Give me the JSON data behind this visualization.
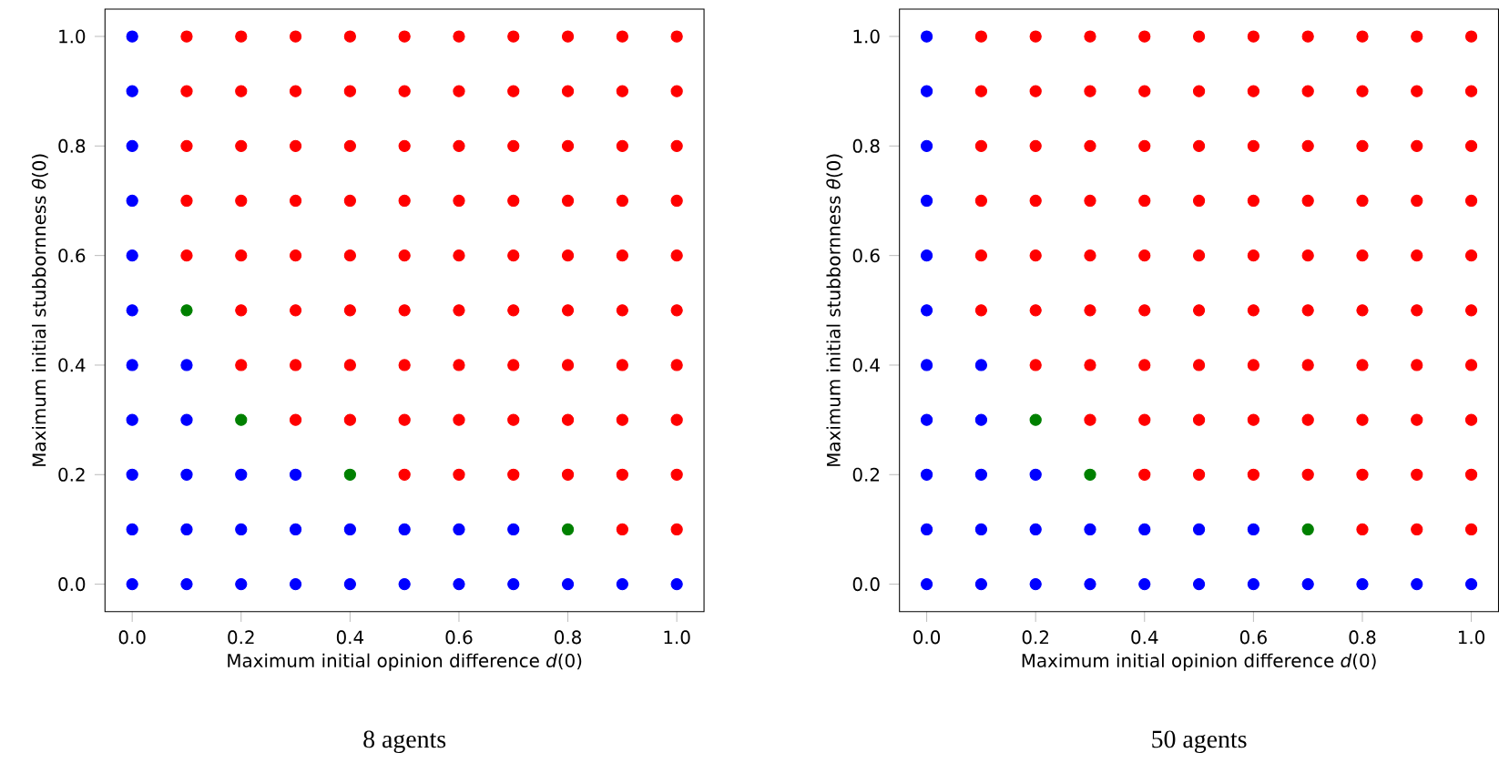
{
  "chart_data": [
    {
      "type": "scatter",
      "title": "8 agents",
      "xlabel": "Maximum initial opinion difference *d*(0)",
      "ylabel": "Maximum initial stubbornness *θ*(0)",
      "marker": "circle",
      "xlim": [
        -0.05,
        1.05
      ],
      "ylim": [
        -0.05,
        1.05
      ],
      "xticks": [
        {
          "value": 0,
          "label": "0.0"
        },
        {
          "value": 0.2,
          "label": "0.2"
        },
        {
          "value": 0.4,
          "label": "0.4"
        },
        {
          "value": 0.6,
          "label": "0.6"
        },
        {
          "value": 0.8,
          "label": "0.8"
        },
        {
          "value": 1,
          "label": "1.0"
        }
      ],
      "yticks": [
        {
          "value": 0,
          "label": "0.0"
        },
        {
          "value": 0.2,
          "label": "0.2"
        },
        {
          "value": 0.4,
          "label": "0.4"
        },
        {
          "value": 0.6,
          "label": "0.6"
        },
        {
          "value": 0.8,
          "label": "0.8"
        },
        {
          "value": 1,
          "label": "1.0"
        }
      ],
      "series": [
        {
          "color": "#0000ff",
          "x": [
            0,
            0.1,
            0.2,
            0.3,
            0.4,
            0.5,
            0.6,
            0.7,
            0.8,
            0.9,
            1,
            0,
            0.1,
            0.2,
            0.3,
            0.4,
            0.5,
            0.6,
            0.7,
            0,
            0.1,
            0.2,
            0.3,
            0,
            0.1,
            0,
            0.1,
            0,
            0,
            0,
            0,
            0,
            0
          ],
          "values": [
            0,
            0,
            0,
            0,
            0,
            0,
            0,
            0,
            0,
            0,
            0,
            0.1,
            0.1,
            0.1,
            0.1,
            0.1,
            0.1,
            0.1,
            0.1,
            0.2,
            0.2,
            0.2,
            0.2,
            0.3,
            0.3,
            0.4,
            0.4,
            0.5,
            0.6,
            0.7,
            0.8,
            0.9,
            1
          ]
        },
        {
          "color": "#008000",
          "x": [
            0.8,
            0.4,
            0.2,
            0.1
          ],
          "values": [
            0.1,
            0.2,
            0.3,
            0.5
          ]
        },
        {
          "color": "#ff0000",
          "x": [
            0.9,
            1,
            0.5,
            0.6,
            0.7,
            0.8,
            0.9,
            1,
            0.3,
            0.4,
            0.5,
            0.6,
            0.7,
            0.8,
            0.9,
            1,
            0.2,
            0.3,
            0.4,
            0.5,
            0.6,
            0.7,
            0.8,
            0.9,
            1,
            0.2,
            0.3,
            0.4,
            0.5,
            0.6,
            0.7,
            0.8,
            0.9,
            1,
            0.1,
            0.2,
            0.3,
            0.4,
            0.5,
            0.6,
            0.7,
            0.8,
            0.9,
            1,
            0.1,
            0.2,
            0.3,
            0.4,
            0.5,
            0.6,
            0.7,
            0.8,
            0.9,
            1,
            0.1,
            0.2,
            0.3,
            0.4,
            0.5,
            0.6,
            0.7,
            0.8,
            0.9,
            1,
            0.1,
            0.2,
            0.3,
            0.4,
            0.5,
            0.6,
            0.7,
            0.8,
            0.9,
            1,
            0.1,
            0.2,
            0.3,
            0.4,
            0.5,
            0.6,
            0.7,
            0.8,
            0.9,
            1
          ],
          "values": [
            0.1,
            0.1,
            0.2,
            0.2,
            0.2,
            0.2,
            0.2,
            0.2,
            0.3,
            0.3,
            0.3,
            0.3,
            0.3,
            0.3,
            0.3,
            0.3,
            0.4,
            0.4,
            0.4,
            0.4,
            0.4,
            0.4,
            0.4,
            0.4,
            0.4,
            0.5,
            0.5,
            0.5,
            0.5,
            0.5,
            0.5,
            0.5,
            0.5,
            0.5,
            0.6,
            0.6,
            0.6,
            0.6,
            0.6,
            0.6,
            0.6,
            0.6,
            0.6,
            0.6,
            0.7,
            0.7,
            0.7,
            0.7,
            0.7,
            0.7,
            0.7,
            0.7,
            0.7,
            0.7,
            0.8,
            0.8,
            0.8,
            0.8,
            0.8,
            0.8,
            0.8,
            0.8,
            0.8,
            0.8,
            0.9,
            0.9,
            0.9,
            0.9,
            0.9,
            0.9,
            0.9,
            0.9,
            0.9,
            0.9,
            1,
            1,
            1,
            1,
            1,
            1,
            1,
            1,
            1,
            1
          ]
        }
      ]
    },
    {
      "type": "scatter",
      "title": "50 agents",
      "xlabel": "Maximum initial opinion difference *d*(0)",
      "ylabel": "Maximum initial stubbornness *θ*(0)",
      "marker": "circle",
      "xlim": [
        -0.05,
        1.05
      ],
      "ylim": [
        -0.05,
        1.05
      ],
      "xticks": [
        {
          "value": 0,
          "label": "0.0"
        },
        {
          "value": 0.2,
          "label": "0.2"
        },
        {
          "value": 0.4,
          "label": "0.4"
        },
        {
          "value": 0.6,
          "label": "0.6"
        },
        {
          "value": 0.8,
          "label": "0.8"
        },
        {
          "value": 1,
          "label": "1.0"
        }
      ],
      "yticks": [
        {
          "value": 0,
          "label": "0.0"
        },
        {
          "value": 0.2,
          "label": "0.2"
        },
        {
          "value": 0.4,
          "label": "0.4"
        },
        {
          "value": 0.6,
          "label": "0.6"
        },
        {
          "value": 0.8,
          "label": "0.8"
        },
        {
          "value": 1,
          "label": "1.0"
        }
      ],
      "series": [
        {
          "color": "#0000ff",
          "x": [
            0,
            0.1,
            0.2,
            0.3,
            0.4,
            0.5,
            0.6,
            0.7,
            0.8,
            0.9,
            1,
            0,
            0.1,
            0.2,
            0.3,
            0.4,
            0.5,
            0.6,
            0,
            0.1,
            0.2,
            0,
            0.1,
            0,
            0.1,
            0,
            0,
            0,
            0,
            0,
            0
          ],
          "values": [
            0,
            0,
            0,
            0,
            0,
            0,
            0,
            0,
            0,
            0,
            0,
            0.1,
            0.1,
            0.1,
            0.1,
            0.1,
            0.1,
            0.1,
            0.2,
            0.2,
            0.2,
            0.3,
            0.3,
            0.4,
            0.4,
            0.5,
            0.6,
            0.7,
            0.8,
            0.9,
            1
          ]
        },
        {
          "color": "#008000",
          "x": [
            0.7,
            0.3,
            0.2
          ],
          "values": [
            0.1,
            0.2,
            0.3
          ]
        },
        {
          "color": "#ff0000",
          "x": [
            0.8,
            0.9,
            1,
            0.4,
            0.5,
            0.6,
            0.7,
            0.8,
            0.9,
            1,
            0.3,
            0.4,
            0.5,
            0.6,
            0.7,
            0.8,
            0.9,
            1,
            0.2,
            0.3,
            0.4,
            0.5,
            0.6,
            0.7,
            0.8,
            0.9,
            1,
            0.1,
            0.2,
            0.3,
            0.4,
            0.5,
            0.6,
            0.7,
            0.8,
            0.9,
            1,
            0.1,
            0.2,
            0.3,
            0.4,
            0.5,
            0.6,
            0.7,
            0.8,
            0.9,
            1,
            0.1,
            0.2,
            0.3,
            0.4,
            0.5,
            0.6,
            0.7,
            0.8,
            0.9,
            1,
            0.1,
            0.2,
            0.3,
            0.4,
            0.5,
            0.6,
            0.7,
            0.8,
            0.9,
            1,
            0.1,
            0.2,
            0.3,
            0.4,
            0.5,
            0.6,
            0.7,
            0.8,
            0.9,
            1,
            0.1,
            0.2,
            0.3,
            0.4,
            0.5,
            0.6,
            0.7,
            0.8,
            0.9,
            1
          ],
          "values": [
            0.1,
            0.1,
            0.1,
            0.2,
            0.2,
            0.2,
            0.2,
            0.2,
            0.2,
            0.2,
            0.3,
            0.3,
            0.3,
            0.3,
            0.3,
            0.3,
            0.3,
            0.3,
            0.4,
            0.4,
            0.4,
            0.4,
            0.4,
            0.4,
            0.4,
            0.4,
            0.4,
            0.5,
            0.5,
            0.5,
            0.5,
            0.5,
            0.5,
            0.5,
            0.5,
            0.5,
            0.5,
            0.6,
            0.6,
            0.6,
            0.6,
            0.6,
            0.6,
            0.6,
            0.6,
            0.6,
            0.6,
            0.7,
            0.7,
            0.7,
            0.7,
            0.7,
            0.7,
            0.7,
            0.7,
            0.7,
            0.7,
            0.8,
            0.8,
            0.8,
            0.8,
            0.8,
            0.8,
            0.8,
            0.8,
            0.8,
            0.8,
            0.9,
            0.9,
            0.9,
            0.9,
            0.9,
            0.9,
            0.9,
            0.9,
            0.9,
            0.9,
            1,
            1,
            1,
            1,
            1,
            1,
            1,
            1,
            1,
            1
          ]
        }
      ]
    }
  ]
}
